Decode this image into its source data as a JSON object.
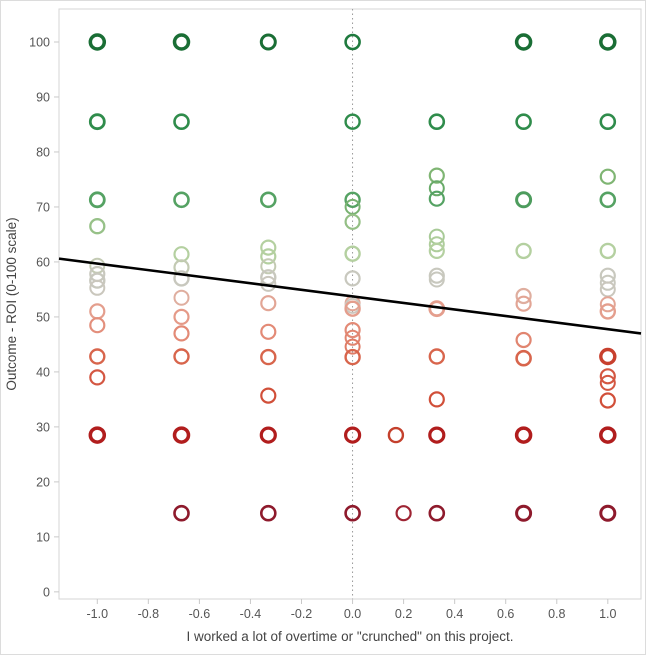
{
  "chart_data": {
    "type": "scatter",
    "title": "",
    "xlabel": "I worked a lot of overtime or \"crunched\" on this project.",
    "ylabel": "Outcome - ROI (0-100 scale)",
    "xlim": [
      -1.15,
      1.13
    ],
    "ylim": [
      -1.3,
      106
    ],
    "grid": false,
    "x_ticks": [
      -1.0,
      -0.8,
      -0.6,
      -0.4,
      -0.2,
      0.0,
      0.2,
      0.4,
      0.6,
      0.8,
      1.0
    ],
    "x_tick_labels": [
      "-1.0",
      "-0.8",
      "-0.6",
      "-0.4",
      "-0.2",
      "0.0",
      "0.2",
      "0.4",
      "0.6",
      "0.8",
      "1.0"
    ],
    "y_ticks": [
      0,
      10,
      20,
      30,
      40,
      50,
      60,
      70,
      80,
      90,
      100
    ],
    "y_tick_labels": [
      "0",
      "10",
      "20",
      "30",
      "40",
      "50",
      "60",
      "70",
      "80",
      "90",
      "100"
    ],
    "reference_line_x": 0,
    "reference_line_color": "#999999",
    "frame_color": "#d5d5d5",
    "tick_color": "#c9c9c9",
    "tick_label_color": "#555555",
    "axis_title_color": "#444444",
    "trend_line": {
      "x1": -1.15,
      "y1": 60.6,
      "x2": 1.13,
      "y2": 47.0,
      "color": "#000000",
      "width": 2.6
    },
    "marker": {
      "shape": "open-circle",
      "radius": 7
    },
    "points": [
      {
        "x": -1.0,
        "y": 100,
        "c": "#1a6e35",
        "w": 3.5
      },
      {
        "x": -1.0,
        "y": 85.5,
        "c": "#2f8c4b",
        "w": 2.8
      },
      {
        "x": -1.0,
        "y": 71.3,
        "c": "#55a263",
        "w": 2.8
      },
      {
        "x": -1.0,
        "y": 66.5,
        "c": "#97c188",
        "w": 2.3
      },
      {
        "x": -1.0,
        "y": 59.3,
        "c": "#c3cab3",
        "w": 2.0
      },
      {
        "x": -1.0,
        "y": 57.8,
        "c": "#c8c8be",
        "w": 2.2
      },
      {
        "x": -1.0,
        "y": 56.6,
        "c": "#c8c8be",
        "w": 2.4
      },
      {
        "x": -1.0,
        "y": 55.3,
        "c": "#cac7bd",
        "w": 2.0
      },
      {
        "x": -1.0,
        "y": 51.0,
        "c": "#e49e8d",
        "w": 2.2
      },
      {
        "x": -1.0,
        "y": 48.5,
        "c": "#e38f7c",
        "w": 2.2
      },
      {
        "x": -1.0,
        "y": 42.8,
        "c": "#d8654c",
        "w": 2.4
      },
      {
        "x": -1.0,
        "y": 39.0,
        "c": "#d45742",
        "w": 2.2
      },
      {
        "x": -1.0,
        "y": 28.5,
        "c": "#b11d1d",
        "w": 3.5
      },
      {
        "x": -0.67,
        "y": 100,
        "c": "#1a6e35",
        "w": 3.5
      },
      {
        "x": -0.67,
        "y": 85.5,
        "c": "#2f8c4b",
        "w": 2.6
      },
      {
        "x": -0.67,
        "y": 71.3,
        "c": "#55a263",
        "w": 2.6
      },
      {
        "x": -0.67,
        "y": 61.4,
        "c": "#b4d0a0",
        "w": 2.2
      },
      {
        "x": -0.67,
        "y": 59.0,
        "c": "#c3cab3",
        "w": 2.2
      },
      {
        "x": -0.67,
        "y": 57.0,
        "c": "#c8c8be",
        "w": 2.4
      },
      {
        "x": -0.67,
        "y": 53.5,
        "c": "#dfae9f",
        "w": 2.0
      },
      {
        "x": -0.67,
        "y": 50.0,
        "c": "#e59a88",
        "w": 2.2
      },
      {
        "x": -0.67,
        "y": 47.0,
        "c": "#e38a76",
        "w": 2.2
      },
      {
        "x": -0.67,
        "y": 42.8,
        "c": "#d8654c",
        "w": 2.4
      },
      {
        "x": -0.67,
        "y": 28.5,
        "c": "#b11d1d",
        "w": 3.5
      },
      {
        "x": -0.67,
        "y": 14.3,
        "c": "#8e1a2c",
        "w": 2.6
      },
      {
        "x": -0.33,
        "y": 100,
        "c": "#1a6e35",
        "w": 3.0
      },
      {
        "x": -0.33,
        "y": 71.3,
        "c": "#55a263",
        "w": 2.6
      },
      {
        "x": -0.33,
        "y": 62.6,
        "c": "#b4d0a0",
        "w": 2.2
      },
      {
        "x": -0.33,
        "y": 61.0,
        "c": "#b4d0a0",
        "w": 2.2
      },
      {
        "x": -0.33,
        "y": 59.2,
        "c": "#c3cab3",
        "w": 2.0
      },
      {
        "x": -0.33,
        "y": 57.2,
        "c": "#c8c8be",
        "w": 2.4
      },
      {
        "x": -0.33,
        "y": 56.0,
        "c": "#cac7bd",
        "w": 2.0
      },
      {
        "x": -0.33,
        "y": 52.5,
        "c": "#e2a595",
        "w": 2.2
      },
      {
        "x": -0.33,
        "y": 47.3,
        "c": "#e38a76",
        "w": 2.2
      },
      {
        "x": -0.33,
        "y": 42.7,
        "c": "#d8654c",
        "w": 2.4
      },
      {
        "x": -0.33,
        "y": 35.7,
        "c": "#d14f39",
        "w": 2.2
      },
      {
        "x": -0.33,
        "y": 28.5,
        "c": "#b11d1d",
        "w": 3.2
      },
      {
        "x": -0.33,
        "y": 14.3,
        "c": "#8e1a2c",
        "w": 2.6
      },
      {
        "x": 0.0,
        "y": 100,
        "c": "#1f7a3e",
        "w": 2.6
      },
      {
        "x": 0.0,
        "y": 85.5,
        "c": "#2f8c4b",
        "w": 2.4
      },
      {
        "x": 0.0,
        "y": 71.3,
        "c": "#55a263",
        "w": 2.4
      },
      {
        "x": 0.0,
        "y": 70.0,
        "c": "#79b271",
        "w": 2.0
      },
      {
        "x": 0.0,
        "y": 67.3,
        "c": "#94bf85",
        "w": 2.2
      },
      {
        "x": 0.0,
        "y": 61.5,
        "c": "#b4d0a0",
        "w": 2.4
      },
      {
        "x": 0.0,
        "y": 57.0,
        "c": "#c8c8be",
        "w": 2.2
      },
      {
        "x": 0.0,
        "y": 52.5,
        "c": "#e2a595",
        "w": 2.0
      },
      {
        "x": 0.0,
        "y": 52.0,
        "c": "#cbc7bf",
        "w": 2.0
      },
      {
        "x": 0.0,
        "y": 51.5,
        "c": "#e49e8d",
        "w": 2.4
      },
      {
        "x": 0.0,
        "y": 47.6,
        "c": "#e38a76",
        "w": 2.2
      },
      {
        "x": 0.0,
        "y": 46.2,
        "c": "#e18570",
        "w": 2.0
      },
      {
        "x": 0.0,
        "y": 44.6,
        "c": "#df7c66",
        "w": 2.0
      },
      {
        "x": 0.0,
        "y": 42.7,
        "c": "#d8654c",
        "w": 2.4
      },
      {
        "x": 0.0,
        "y": 28.5,
        "c": "#b11d1d",
        "w": 3.2
      },
      {
        "x": 0.0,
        "y": 14.3,
        "c": "#8e1a2c",
        "w": 2.6
      },
      {
        "x": 0.17,
        "y": 28.5,
        "c": "#c4402c",
        "w": 2.4
      },
      {
        "x": 0.2,
        "y": 14.3,
        "c": "#9e2433",
        "w": 2.2
      },
      {
        "x": 0.33,
        "y": 85.5,
        "c": "#2f8c4b",
        "w": 2.6
      },
      {
        "x": 0.33,
        "y": 75.7,
        "c": "#7fb573",
        "w": 2.2
      },
      {
        "x": 0.33,
        "y": 73.4,
        "c": "#68aa68",
        "w": 2.0
      },
      {
        "x": 0.33,
        "y": 71.5,
        "c": "#55a263",
        "w": 2.2
      },
      {
        "x": 0.33,
        "y": 64.6,
        "c": "#a8ca97",
        "w": 2.0
      },
      {
        "x": 0.33,
        "y": 63.2,
        "c": "#aecd9b",
        "w": 2.0
      },
      {
        "x": 0.33,
        "y": 62.0,
        "c": "#b4d0a0",
        "w": 2.2
      },
      {
        "x": 0.33,
        "y": 57.5,
        "c": "#c8c8be",
        "w": 2.2
      },
      {
        "x": 0.33,
        "y": 56.8,
        "c": "#c8c8be",
        "w": 2.0
      },
      {
        "x": 0.33,
        "y": 51.5,
        "c": "#e49e8d",
        "w": 2.8
      },
      {
        "x": 0.33,
        "y": 42.8,
        "c": "#d8654c",
        "w": 2.4
      },
      {
        "x": 0.33,
        "y": 35.0,
        "c": "#d14f39",
        "w": 2.2
      },
      {
        "x": 0.33,
        "y": 28.5,
        "c": "#b11d1d",
        "w": 3.2
      },
      {
        "x": 0.33,
        "y": 14.3,
        "c": "#8e1a2c",
        "w": 2.6
      },
      {
        "x": 0.67,
        "y": 100,
        "c": "#1a6e35",
        "w": 3.5
      },
      {
        "x": 0.67,
        "y": 85.5,
        "c": "#2f8c4b",
        "w": 2.6
      },
      {
        "x": 0.67,
        "y": 71.3,
        "c": "#4d9c5d",
        "w": 3.0
      },
      {
        "x": 0.67,
        "y": 62.0,
        "c": "#b4d0a0",
        "w": 2.4
      },
      {
        "x": 0.67,
        "y": 53.8,
        "c": "#dfae9f",
        "w": 2.2
      },
      {
        "x": 0.67,
        "y": 52.4,
        "c": "#e2a595",
        "w": 2.2
      },
      {
        "x": 0.67,
        "y": 45.8,
        "c": "#e18570",
        "w": 2.2
      },
      {
        "x": 0.67,
        "y": 42.5,
        "c": "#d8654c",
        "w": 2.6
      },
      {
        "x": 0.67,
        "y": 28.5,
        "c": "#b11d1d",
        "w": 3.5
      },
      {
        "x": 0.67,
        "y": 14.3,
        "c": "#8e1a2c",
        "w": 3.0
      },
      {
        "x": 1.0,
        "y": 100,
        "c": "#1a6e35",
        "w": 3.5
      },
      {
        "x": 1.0,
        "y": 85.5,
        "c": "#2f8c4b",
        "w": 2.6
      },
      {
        "x": 1.0,
        "y": 75.5,
        "c": "#7fb573",
        "w": 2.2
      },
      {
        "x": 1.0,
        "y": 71.3,
        "c": "#55a263",
        "w": 2.6
      },
      {
        "x": 1.0,
        "y": 62.0,
        "c": "#b4d0a0",
        "w": 2.4
      },
      {
        "x": 1.0,
        "y": 57.5,
        "c": "#c8c8be",
        "w": 2.2
      },
      {
        "x": 1.0,
        "y": 56.2,
        "c": "#c8c8be",
        "w": 2.0
      },
      {
        "x": 1.0,
        "y": 55.0,
        "c": "#cac7bd",
        "w": 2.0
      },
      {
        "x": 1.0,
        "y": 52.3,
        "c": "#e2a595",
        "w": 2.0
      },
      {
        "x": 1.0,
        "y": 51.0,
        "c": "#e49e8d",
        "w": 2.4
      },
      {
        "x": 1.0,
        "y": 42.8,
        "c": "#c8402e",
        "w": 3.4
      },
      {
        "x": 1.0,
        "y": 39.2,
        "c": "#d45742",
        "w": 2.2
      },
      {
        "x": 1.0,
        "y": 38.0,
        "c": "#d45742",
        "w": 2.0
      },
      {
        "x": 1.0,
        "y": 34.8,
        "c": "#d14f39",
        "w": 2.2
      },
      {
        "x": 1.0,
        "y": 28.5,
        "c": "#b11d1d",
        "w": 3.5
      },
      {
        "x": 1.0,
        "y": 14.3,
        "c": "#8e1a2c",
        "w": 3.0
      }
    ]
  }
}
